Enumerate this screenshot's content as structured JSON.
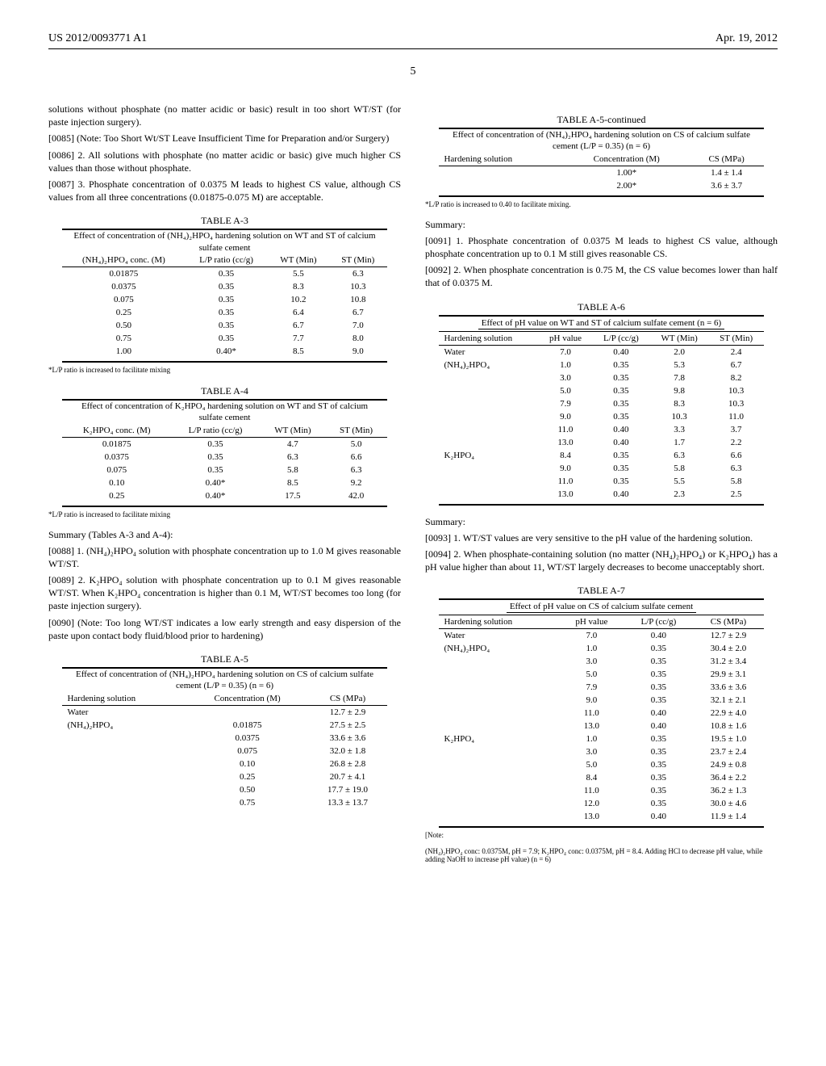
{
  "header": {
    "left": "US 2012/0093771 A1",
    "right": "Apr. 19, 2012"
  },
  "page_number": "5",
  "left_col": {
    "p_intro": "solutions without phosphate (no matter acidic or basic) result in too short WT/ST (for paste injection surgery).",
    "p0085_num": "[0085]",
    "p0085": " (Note: Too Short Wt/ST Leave Insufficient Time for Preparation and/or Surgery)",
    "p0086_num": "[0086]",
    "p0086": " 2. All solutions with phosphate (no matter acidic or basic) give much higher CS values than those without phosphate.",
    "p0087_num": "[0087]",
    "p0087": " 3. Phosphate concentration of 0.0375 M leads to highest CS value, although CS values from all three concentrations (0.01875-0.075 M) are acceptable.",
    "tableA3": {
      "label": "TABLE A-3",
      "caption": "Effect of concentration of (NH₄)₂HPO₄ hardening solution on WT and ST of calcium sulfate cement",
      "columns": [
        "(NH₄)₂HPO₄ conc. (M)",
        "L/P ratio (cc/g)",
        "WT (Min)",
        "ST (Min)"
      ],
      "rows": [
        [
          "0.01875",
          "0.35",
          "5.5",
          "6.3"
        ],
        [
          "0.0375",
          "0.35",
          "8.3",
          "10.3"
        ],
        [
          "0.075",
          "0.35",
          "10.2",
          "10.8"
        ],
        [
          "0.25",
          "0.35",
          "6.4",
          "6.7"
        ],
        [
          "0.50",
          "0.35",
          "6.7",
          "7.0"
        ],
        [
          "0.75",
          "0.35",
          "7.7",
          "8.0"
        ],
        [
          "1.00",
          "0.40*",
          "8.5",
          "9.0"
        ]
      ],
      "footnote": "*L/P ratio is increased to facilitate mixing"
    },
    "tableA4": {
      "label": "TABLE A-4",
      "caption": "Effect of concentration of K₂HPO₄ hardening solution on WT and ST of calcium sulfate cement",
      "columns": [
        "K₂HPO₄ conc. (M)",
        "L/P ratio (cc/g)",
        "WT (Min)",
        "ST (Min)"
      ],
      "rows": [
        [
          "0.01875",
          "0.35",
          "4.7",
          "5.0"
        ],
        [
          "0.0375",
          "0.35",
          "6.3",
          "6.6"
        ],
        [
          "0.075",
          "0.35",
          "5.8",
          "6.3"
        ],
        [
          "0.10",
          "0.40*",
          "8.5",
          "9.2"
        ],
        [
          "0.25",
          "0.40*",
          "17.5",
          "42.0"
        ]
      ],
      "footnote": "*L/P ratio is increased to facilitate mixing"
    },
    "summary34_head": "Summary (Tables A-3 and A-4):",
    "p0088_num": "[0088]",
    "p0088": " 1. (NH₄)₂HPO₄ solution with phosphate concentration up to 1.0 M gives reasonable WT/ST.",
    "p0089_num": "[0089]",
    "p0089": " 2. K₂HPO₄ solution with phosphate concentration up to 0.1 M gives reasonable WT/ST. When K₂HPO₄ concentration is higher than 0.1 M, WT/ST becomes too long (for paste injection surgery).",
    "p0090_num": "[0090]",
    "p0090": " (Note: Too long WT/ST indicates a low early strength and easy dispersion of the paste upon contact body fluid/blood prior to hardening)",
    "tableA5": {
      "label": "TABLE A-5",
      "caption": "Effect of concentration of (NH₄)₂HPO₄ hardening solution on CS of calcium sulfate cement (L/P = 0.35) (n = 6)",
      "columns": [
        "Hardening solution",
        "Concentration (M)",
        "CS (MPa)"
      ],
      "rows": [
        [
          "Water",
          "",
          "12.7 ± 2.9"
        ],
        [
          "(NH₄)₂HPO₄",
          "0.01875",
          "27.5 ± 2.5"
        ],
        [
          "",
          "0.0375",
          "33.6 ± 3.6"
        ],
        [
          "",
          "0.075",
          "32.0 ± 1.8"
        ],
        [
          "",
          "0.10",
          "26.8 ± 2.8"
        ],
        [
          "",
          "0.25",
          "20.7 ± 4.1"
        ],
        [
          "",
          "0.50",
          "17.7 ± 19.0"
        ],
        [
          "",
          "0.75",
          "13.3 ± 13.7"
        ]
      ]
    }
  },
  "right_col": {
    "tableA5c": {
      "label": "TABLE A-5-continued",
      "caption": "Effect of concentration of (NH₄)₂HPO₄ hardening solution on CS of calcium sulfate cement (L/P = 0.35) (n = 6)",
      "columns": [
        "Hardening solution",
        "Concentration (M)",
        "CS (MPa)"
      ],
      "rows": [
        [
          "",
          "1.00*",
          "1.4 ± 1.4"
        ],
        [
          "",
          "2.00*",
          "3.6 ± 3.7"
        ]
      ],
      "footnote": "*L/P ratio is increased to 0.40 to facilitate mixing."
    },
    "summary5_head": "Summary:",
    "p0091_num": "[0091]",
    "p0091": " 1. Phosphate concentration of 0.0375 M leads to highest CS value, although phosphate concentration up to 0.1 M still gives reasonable CS.",
    "p0092_num": "[0092]",
    "p0092": " 2. When phosphate concentration is 0.75 M, the CS value becomes lower than half that of 0.0375 M.",
    "tableA6": {
      "label": "TABLE A-6",
      "caption": "Effect of pH value on WT and ST of calcium sulfate cement (n = 6)",
      "columns": [
        "Hardening solution",
        "pH value",
        "L/P (cc/g)",
        "WT (Min)",
        "ST (Min)"
      ],
      "rows": [
        [
          "Water",
          "7.0",
          "0.40",
          "2.0",
          "2.4"
        ],
        [
          "(NH₄)₂HPO₄",
          "1.0",
          "0.35",
          "5.3",
          "6.7"
        ],
        [
          "",
          "3.0",
          "0.35",
          "7.8",
          "8.2"
        ],
        [
          "",
          "5.0",
          "0.35",
          "9.8",
          "10.3"
        ],
        [
          "",
          "7.9",
          "0.35",
          "8.3",
          "10.3"
        ],
        [
          "",
          "9.0",
          "0.35",
          "10.3",
          "11.0"
        ],
        [
          "",
          "11.0",
          "0.40",
          "3.3",
          "3.7"
        ],
        [
          "",
          "13.0",
          "0.40",
          "1.7",
          "2.2"
        ],
        [
          "K₂HPO₄",
          "8.4",
          "0.35",
          "6.3",
          "6.6"
        ],
        [
          "",
          "9.0",
          "0.35",
          "5.8",
          "6.3"
        ],
        [
          "",
          "11.0",
          "0.35",
          "5.5",
          "5.8"
        ],
        [
          "",
          "13.0",
          "0.40",
          "2.3",
          "2.5"
        ]
      ]
    },
    "summary6_head": "Summary:",
    "p0093_num": "[0093]",
    "p0093": " 1. WT/ST values are very sensitive to the pH value of the hardening solution.",
    "p0094_num": "[0094]",
    "p0094": " 2. When phosphate-containing solution (no matter (NH₄)₂HPO₄) or K₂HPO₄) has a pH value higher than about 11, WT/ST largely decreases to become unacceptably short.",
    "tableA7": {
      "label": "TABLE A-7",
      "caption": "Effect of pH value on CS of calcium sulfate cement",
      "columns": [
        "Hardening solution",
        "pH value",
        "L/P (cc/g)",
        "CS (MPa)"
      ],
      "rows": [
        [
          "Water",
          "7.0",
          "0.40",
          "12.7 ± 2.9"
        ],
        [
          "(NH₄)₂HPO₄",
          "1.0",
          "0.35",
          "30.4 ± 2.0"
        ],
        [
          "",
          "3.0",
          "0.35",
          "31.2 ± 3.4"
        ],
        [
          "",
          "5.0",
          "0.35",
          "29.9 ± 3.1"
        ],
        [
          "",
          "7.9",
          "0.35",
          "33.6 ± 3.6"
        ],
        [
          "",
          "9.0",
          "0.35",
          "32.1 ± 2.1"
        ],
        [
          "",
          "11.0",
          "0.40",
          "22.9 ± 4.0"
        ],
        [
          "",
          "13.0",
          "0.40",
          "10.8 ± 1.6"
        ],
        [
          "K₂HPO₄",
          "1.0",
          "0.35",
          "19.5 ± 1.0"
        ],
        [
          "",
          "3.0",
          "0.35",
          "23.7 ± 2.4"
        ],
        [
          "",
          "5.0",
          "0.35",
          "24.9 ± 0.8"
        ],
        [
          "",
          "8.4",
          "0.35",
          "36.4 ± 2.2"
        ],
        [
          "",
          "11.0",
          "0.35",
          "36.2 ± 1.3"
        ],
        [
          "",
          "12.0",
          "0.35",
          "30.0 ± 4.6"
        ],
        [
          "",
          "13.0",
          "0.40",
          "11.9 ± 1.4"
        ]
      ],
      "footnote_label": "[Note:",
      "footnote": "(NH₄)₂HPO₄ conc: 0.0375M, pH = 7.9; K₂HPO₄ conc: 0.0375M, pH = 8.4. Adding HCl to decrease pH value, while adding NaOH to increase pH value) (n = 6)"
    }
  }
}
